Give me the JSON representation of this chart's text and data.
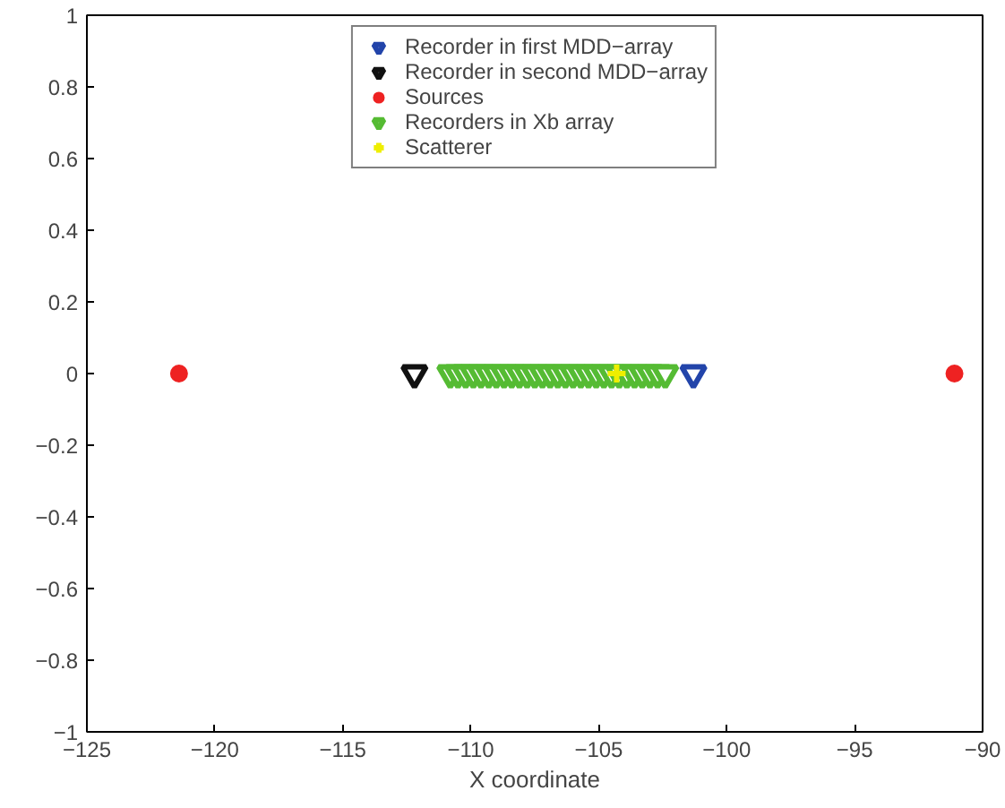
{
  "chart_data": {
    "type": "scatter",
    "xlabel": "X coordinate",
    "xlim": [
      -125,
      -90
    ],
    "xticks": [
      {
        "value": -125,
        "label": "−125"
      },
      {
        "value": -120,
        "label": "−120"
      },
      {
        "value": -115,
        "label": "−115"
      },
      {
        "value": -110,
        "label": "−110"
      },
      {
        "value": -105,
        "label": "−105"
      },
      {
        "value": -100,
        "label": "−100"
      },
      {
        "value": -95,
        "label": "−95"
      },
      {
        "value": -90,
        "label": "−90"
      }
    ],
    "ylim": [
      -1,
      1
    ],
    "yticks": [
      {
        "value": -1,
        "label": "−1"
      },
      {
        "value": -0.8,
        "label": "−0.8"
      },
      {
        "value": -0.6,
        "label": "−0.6"
      },
      {
        "value": -0.4,
        "label": "−0.4"
      },
      {
        "value": -0.2,
        "label": "−0.2"
      },
      0,
      0.2,
      0.4,
      0.6,
      0.8,
      1
    ],
    "grid": false,
    "legend": "top",
    "series": [
      {
        "name": "Recorder in first MDD−array",
        "color": "#2244aa",
        "marker": "triangle",
        "x": [
          -101.3
        ],
        "values": [
          0
        ]
      },
      {
        "name": "Recorder in second MDD−array",
        "color": "#111111",
        "marker": "triangle",
        "x": [
          -112.2
        ],
        "values": [
          0
        ]
      },
      {
        "name": "Sources",
        "color": "#ee2222",
        "marker": "circle",
        "x": [
          -121.4,
          -91.1
        ],
        "values": [
          0,
          0
        ]
      },
      {
        "name": "Recorders in Xb array",
        "color": "#55bb33",
        "marker": "triangle",
        "x": [
          -110.8,
          -110.5,
          -110.2,
          -109.9,
          -109.6,
          -109.3,
          -109.0,
          -108.7,
          -108.4,
          -108.1,
          -107.8,
          -107.5,
          -107.2,
          -106.9,
          -106.6,
          -106.3,
          -106.0,
          -105.7,
          -105.4,
          -105.1,
          -104.8,
          -104.5,
          -104.2,
          -103.9,
          -103.6,
          -103.3,
          -103.0,
          -102.7,
          -102.4
        ],
        "values": [
          0,
          0,
          0,
          0,
          0,
          0,
          0,
          0,
          0,
          0,
          0,
          0,
          0,
          0,
          0,
          0,
          0,
          0,
          0,
          0,
          0,
          0,
          0,
          0,
          0,
          0,
          0,
          0,
          0
        ]
      },
      {
        "name": "Scatterer",
        "color": "#eeee00",
        "marker": "cross",
        "x": [
          -104.3
        ],
        "values": [
          0
        ]
      }
    ]
  }
}
